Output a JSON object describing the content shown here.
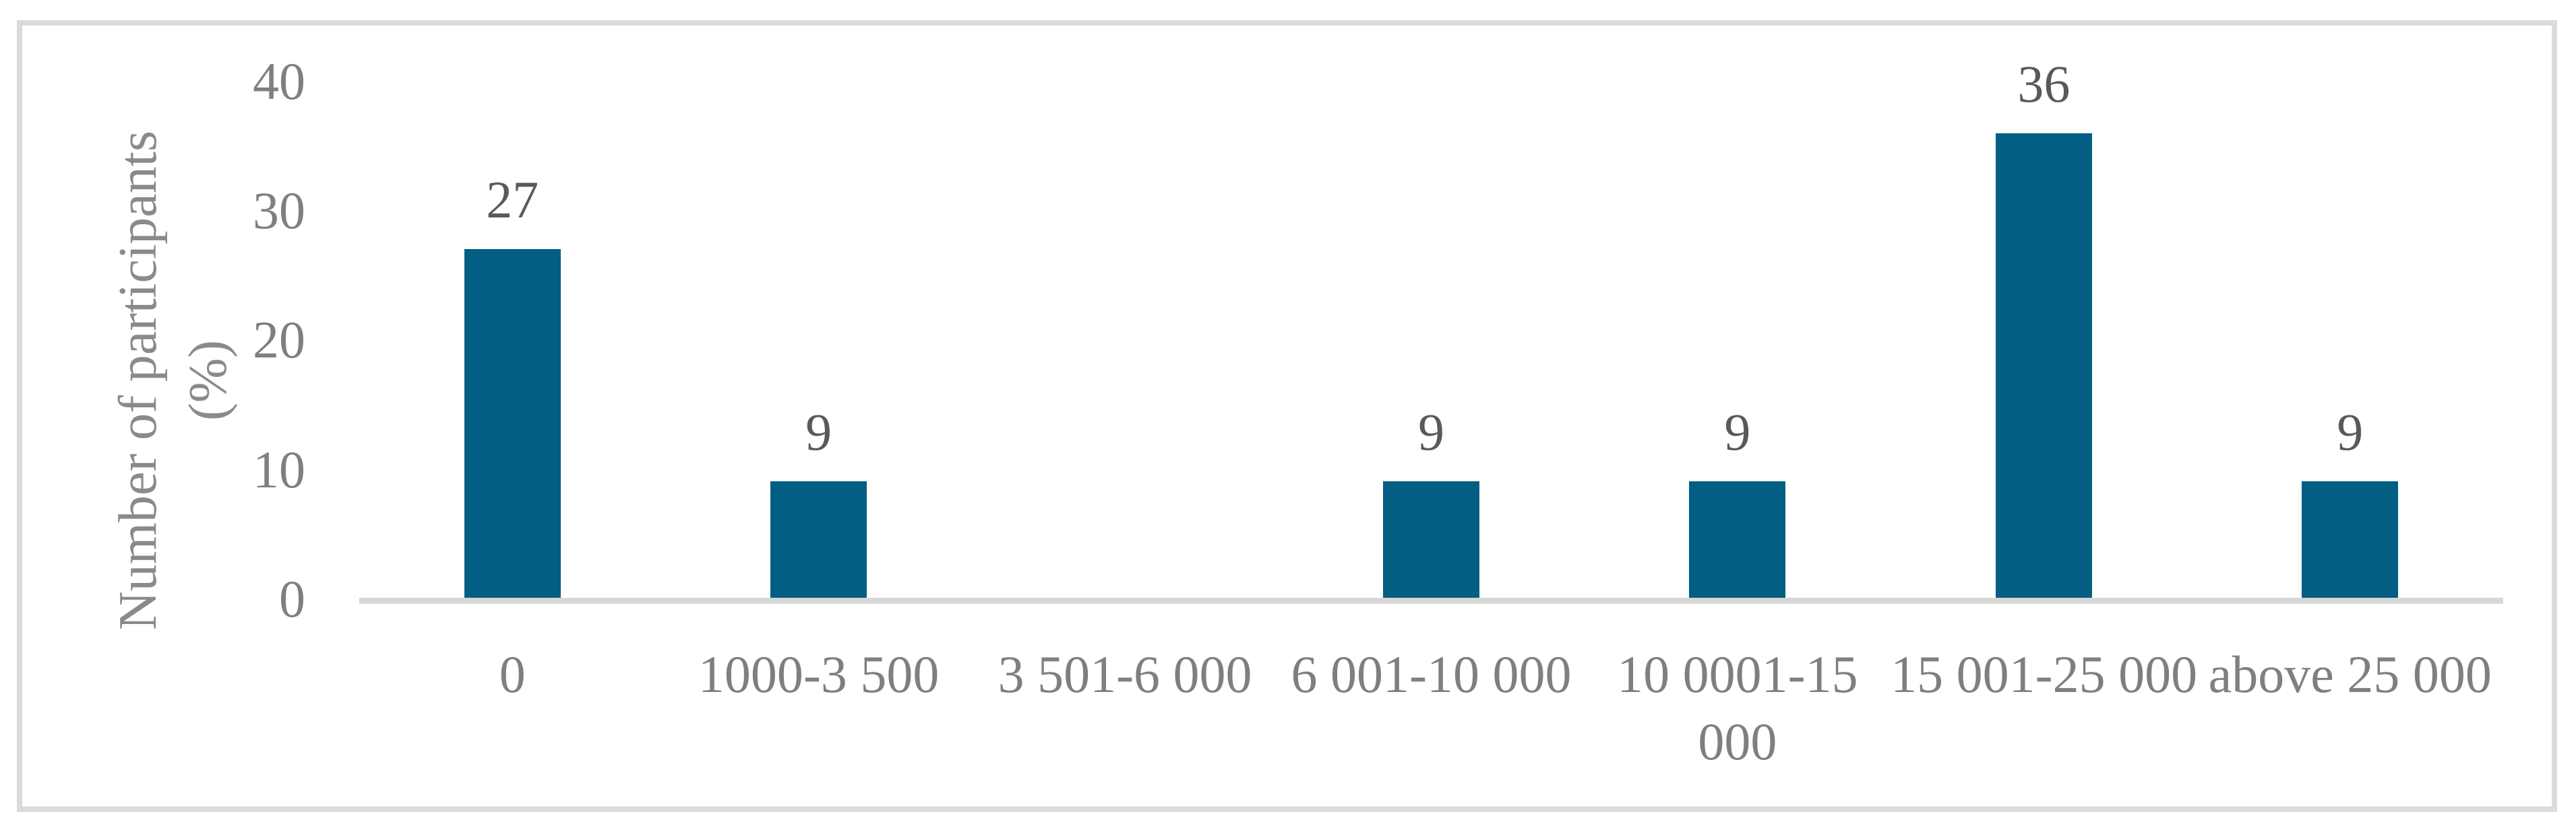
{
  "figure": {
    "background_color": "#FFFFFF",
    "border_color": "#DBDBDB"
  },
  "chart_data": {
    "type": "bar",
    "title": "",
    "xlabel": "",
    "ylabel": "Number of participants\n(%)",
    "categories": [
      "0",
      "1000-3 500",
      "3 501-6 000",
      "6 001-10 000",
      "10 0001-15\n000",
      "15 001-25 000",
      "above 25 000"
    ],
    "values": [
      27,
      9,
      0,
      9,
      9,
      36,
      9
    ],
    "value_labels": [
      "27",
      "9",
      "",
      "9",
      "9",
      "36",
      "9"
    ],
    "yticks": [
      "40",
      "30",
      "20",
      "10",
      "0"
    ],
    "ylim": [
      0,
      40
    ],
    "grid": false,
    "legend_position": "none",
    "bar_color": "#035E83",
    "axis_line_color": "#D7D7D7",
    "tick_label_color": "#7F7F7F",
    "category_label_color": "#7F7F7F",
    "value_label_color": "#595959",
    "axis_title_color": "#8A8A8A"
  }
}
